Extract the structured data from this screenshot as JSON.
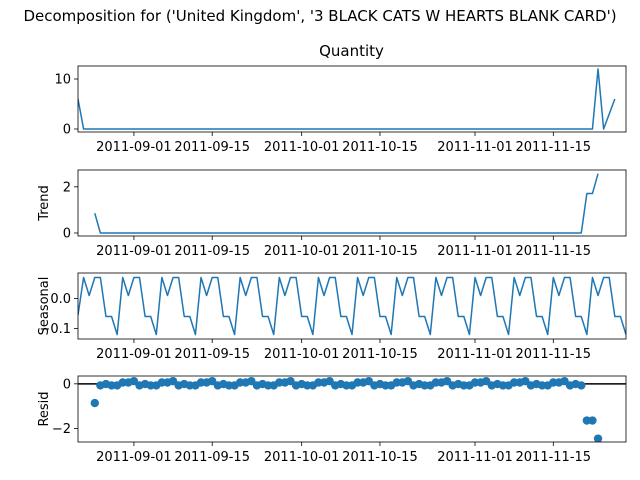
{
  "figure": {
    "suptitle": "Decomposition for ('United Kingdom', '3 BLACK CATS W HEARTS BLANK CARD')"
  },
  "colors": {
    "series": "#1f77b4",
    "axis": "#000000",
    "background": "#ffffff"
  },
  "chart_data": [
    {
      "type": "line",
      "title": "Quantity",
      "ylabel": "",
      "xlim": [
        "2011-08-22",
        "2011-11-28"
      ],
      "ylim": [
        -0.6,
        12.6
      ],
      "yticks": [
        0,
        10
      ],
      "xticks": [
        "2011-09-01",
        "2011-09-15",
        "2011-10-01",
        "2011-10-15",
        "2011-11-01",
        "2011-11-15"
      ],
      "grid": false,
      "series": [
        {
          "points": [
            [
              "2011-08-22",
              6
            ],
            [
              "2011-08-23",
              0
            ],
            [
              "2011-11-22",
              0
            ],
            [
              "2011-11-23",
              12
            ],
            [
              "2011-11-24",
              0
            ],
            [
              "2011-11-26",
              6
            ]
          ]
        }
      ]
    },
    {
      "type": "line",
      "title": "",
      "ylabel": "Trend",
      "xlim": [
        "2011-08-22",
        "2011-11-28"
      ],
      "ylim": [
        -0.13,
        2.73
      ],
      "yticks": [
        0,
        2
      ],
      "xticks": [
        "2011-09-01",
        "2011-09-15",
        "2011-10-01",
        "2011-10-15",
        "2011-11-01",
        "2011-11-15"
      ],
      "grid": false,
      "series": [
        {
          "points": [
            [
              "2011-08-25",
              0.86
            ],
            [
              "2011-08-26",
              0
            ],
            [
              "2011-11-20",
              0
            ],
            [
              "2011-11-21",
              1.71
            ],
            [
              "2011-11-22",
              1.71
            ],
            [
              "2011-11-23",
              2.57
            ]
          ]
        }
      ]
    },
    {
      "type": "line",
      "title": "",
      "ylabel": "Seasonal",
      "xlim": [
        "2011-08-22",
        "2011-11-28"
      ],
      "ylim": [
        -0.135,
        0.085
      ],
      "yticks": [
        0.0,
        -0.1
      ],
      "ytick_labels": [
        "0.0",
        "−0.1"
      ],
      "xticks": [
        "2011-09-01",
        "2011-09-15",
        "2011-10-01",
        "2011-10-15",
        "2011-11-01",
        "2011-11-15"
      ],
      "grid": false,
      "period": 7,
      "weekly_pattern": [
        0.07,
        0.01,
        0.07,
        0.07,
        -0.06,
        -0.06,
        -0.12
      ],
      "pattern_start": "2011-08-23",
      "series": [
        {
          "points": [
            [
              "2011-08-22",
              -0.055
            ]
          ]
        }
      ]
    },
    {
      "type": "scatter",
      "title": "",
      "ylabel": "Resid",
      "xlim": [
        "2011-08-22",
        "2011-11-28"
      ],
      "ylim": [
        -2.6,
        0.35
      ],
      "yticks": [
        0,
        -2
      ],
      "ytick_labels": [
        "0",
        "−2"
      ],
      "xticks": [
        "2011-09-01",
        "2011-09-15",
        "2011-10-01",
        "2011-10-15",
        "2011-11-01",
        "2011-11-15"
      ],
      "grid": false,
      "reference_line": 0,
      "series": [
        {
          "points": [
            [
              "2011-08-25",
              -0.86
            ],
            [
              "2011-08-26",
              -0.07
            ],
            [
              "2011-08-27",
              -0.01
            ],
            [
              "2011-08-28",
              -0.07
            ],
            [
              "2011-08-29",
              -0.07
            ],
            [
              "2011-08-30",
              0.06
            ],
            [
              "2011-08-31",
              0.06
            ],
            [
              "2011-09-01",
              0.12
            ],
            [
              "2011-09-02",
              -0.07
            ],
            [
              "2011-09-03",
              -0.01
            ],
            [
              "2011-09-04",
              -0.07
            ],
            [
              "2011-09-05",
              -0.07
            ],
            [
              "2011-09-06",
              0.06
            ],
            [
              "2011-09-07",
              0.06
            ],
            [
              "2011-09-08",
              0.12
            ],
            [
              "2011-09-09",
              -0.07
            ],
            [
              "2011-09-10",
              -0.01
            ],
            [
              "2011-09-11",
              -0.07
            ],
            [
              "2011-09-12",
              -0.07
            ],
            [
              "2011-09-13",
              0.06
            ],
            [
              "2011-09-14",
              0.06
            ],
            [
              "2011-09-15",
              0.12
            ],
            [
              "2011-09-16",
              -0.07
            ],
            [
              "2011-09-17",
              -0.01
            ],
            [
              "2011-09-18",
              -0.07
            ],
            [
              "2011-09-19",
              -0.07
            ],
            [
              "2011-09-20",
              0.06
            ],
            [
              "2011-09-21",
              0.06
            ],
            [
              "2011-09-22",
              0.12
            ],
            [
              "2011-09-23",
              -0.07
            ],
            [
              "2011-09-24",
              -0.01
            ],
            [
              "2011-09-25",
              -0.07
            ],
            [
              "2011-09-26",
              -0.07
            ],
            [
              "2011-09-27",
              0.06
            ],
            [
              "2011-09-28",
              0.06
            ],
            [
              "2011-09-29",
              0.12
            ],
            [
              "2011-09-30",
              -0.07
            ],
            [
              "2011-10-01",
              -0.01
            ],
            [
              "2011-10-02",
              -0.07
            ],
            [
              "2011-10-03",
              -0.07
            ],
            [
              "2011-10-04",
              0.06
            ],
            [
              "2011-10-05",
              0.06
            ],
            [
              "2011-10-06",
              0.12
            ],
            [
              "2011-10-07",
              -0.07
            ],
            [
              "2011-10-08",
              -0.01
            ],
            [
              "2011-10-09",
              -0.07
            ],
            [
              "2011-10-10",
              -0.07
            ],
            [
              "2011-10-11",
              0.06
            ],
            [
              "2011-10-12",
              0.06
            ],
            [
              "2011-10-13",
              0.12
            ],
            [
              "2011-10-14",
              -0.07
            ],
            [
              "2011-10-15",
              -0.01
            ],
            [
              "2011-10-16",
              -0.07
            ],
            [
              "2011-10-17",
              -0.07
            ],
            [
              "2011-10-18",
              0.06
            ],
            [
              "2011-10-19",
              0.06
            ],
            [
              "2011-10-20",
              0.12
            ],
            [
              "2011-10-21",
              -0.07
            ],
            [
              "2011-10-22",
              -0.01
            ],
            [
              "2011-10-23",
              -0.07
            ],
            [
              "2011-10-24",
              -0.07
            ],
            [
              "2011-10-25",
              0.06
            ],
            [
              "2011-10-26",
              0.06
            ],
            [
              "2011-10-27",
              0.12
            ],
            [
              "2011-10-28",
              -0.07
            ],
            [
              "2011-10-29",
              -0.01
            ],
            [
              "2011-10-30",
              -0.07
            ],
            [
              "2011-10-31",
              -0.07
            ],
            [
              "2011-11-01",
              0.06
            ],
            [
              "2011-11-02",
              0.06
            ],
            [
              "2011-11-03",
              0.12
            ],
            [
              "2011-11-04",
              -0.07
            ],
            [
              "2011-11-05",
              -0.01
            ],
            [
              "2011-11-06",
              -0.07
            ],
            [
              "2011-11-07",
              -0.07
            ],
            [
              "2011-11-08",
              0.06
            ],
            [
              "2011-11-09",
              0.06
            ],
            [
              "2011-11-10",
              0.12
            ],
            [
              "2011-11-11",
              -0.07
            ],
            [
              "2011-11-12",
              -0.01
            ],
            [
              "2011-11-13",
              -0.07
            ],
            [
              "2011-11-14",
              -0.07
            ],
            [
              "2011-11-15",
              0.06
            ],
            [
              "2011-11-16",
              0.06
            ],
            [
              "2011-11-17",
              0.12
            ],
            [
              "2011-11-18",
              -0.07
            ],
            [
              "2011-11-19",
              -0.01
            ],
            [
              "2011-11-20",
              -0.07
            ],
            [
              "2011-11-21",
              -1.64
            ],
            [
              "2011-11-22",
              -1.64
            ],
            [
              "2011-11-23",
              -2.45
            ]
          ]
        }
      ]
    }
  ]
}
